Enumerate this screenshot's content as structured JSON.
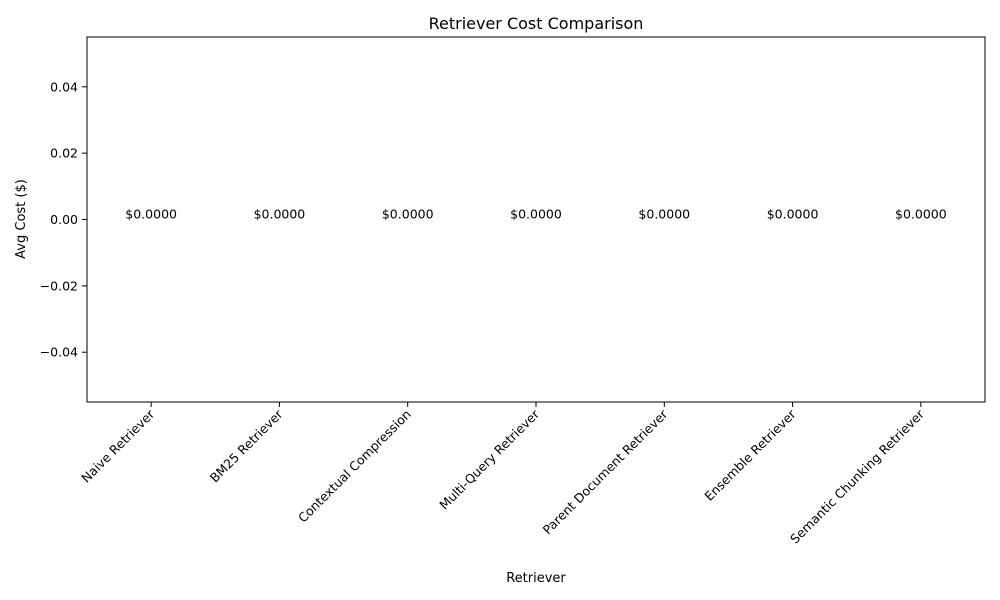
{
  "chart_data": {
    "type": "bar",
    "title": "Retriever Cost Comparison",
    "xlabel": "Retriever",
    "ylabel": "Avg Cost ($)",
    "categories": [
      "Naive Retriever",
      "BM25 Retriever",
      "Contextual Compression",
      "Multi-Query Retriever",
      "Parent Document Retriever",
      "Ensemble Retriever",
      "Semantic Chunking Retriever"
    ],
    "values": [
      0,
      0,
      0,
      0,
      0,
      0,
      0
    ],
    "data_labels": [
      "$0.0000",
      "$0.0000",
      "$0.0000",
      "$0.0000",
      "$0.0000",
      "$0.0000",
      "$0.0000"
    ],
    "ylim": [
      -0.055,
      0.055
    ],
    "yticks": [
      -0.04,
      -0.02,
      0.0,
      0.02,
      0.04
    ],
    "ytick_labels": [
      "−0.04",
      "−0.02",
      "0.00",
      "0.02",
      "0.04"
    ],
    "grid": false,
    "legend": "none"
  }
}
